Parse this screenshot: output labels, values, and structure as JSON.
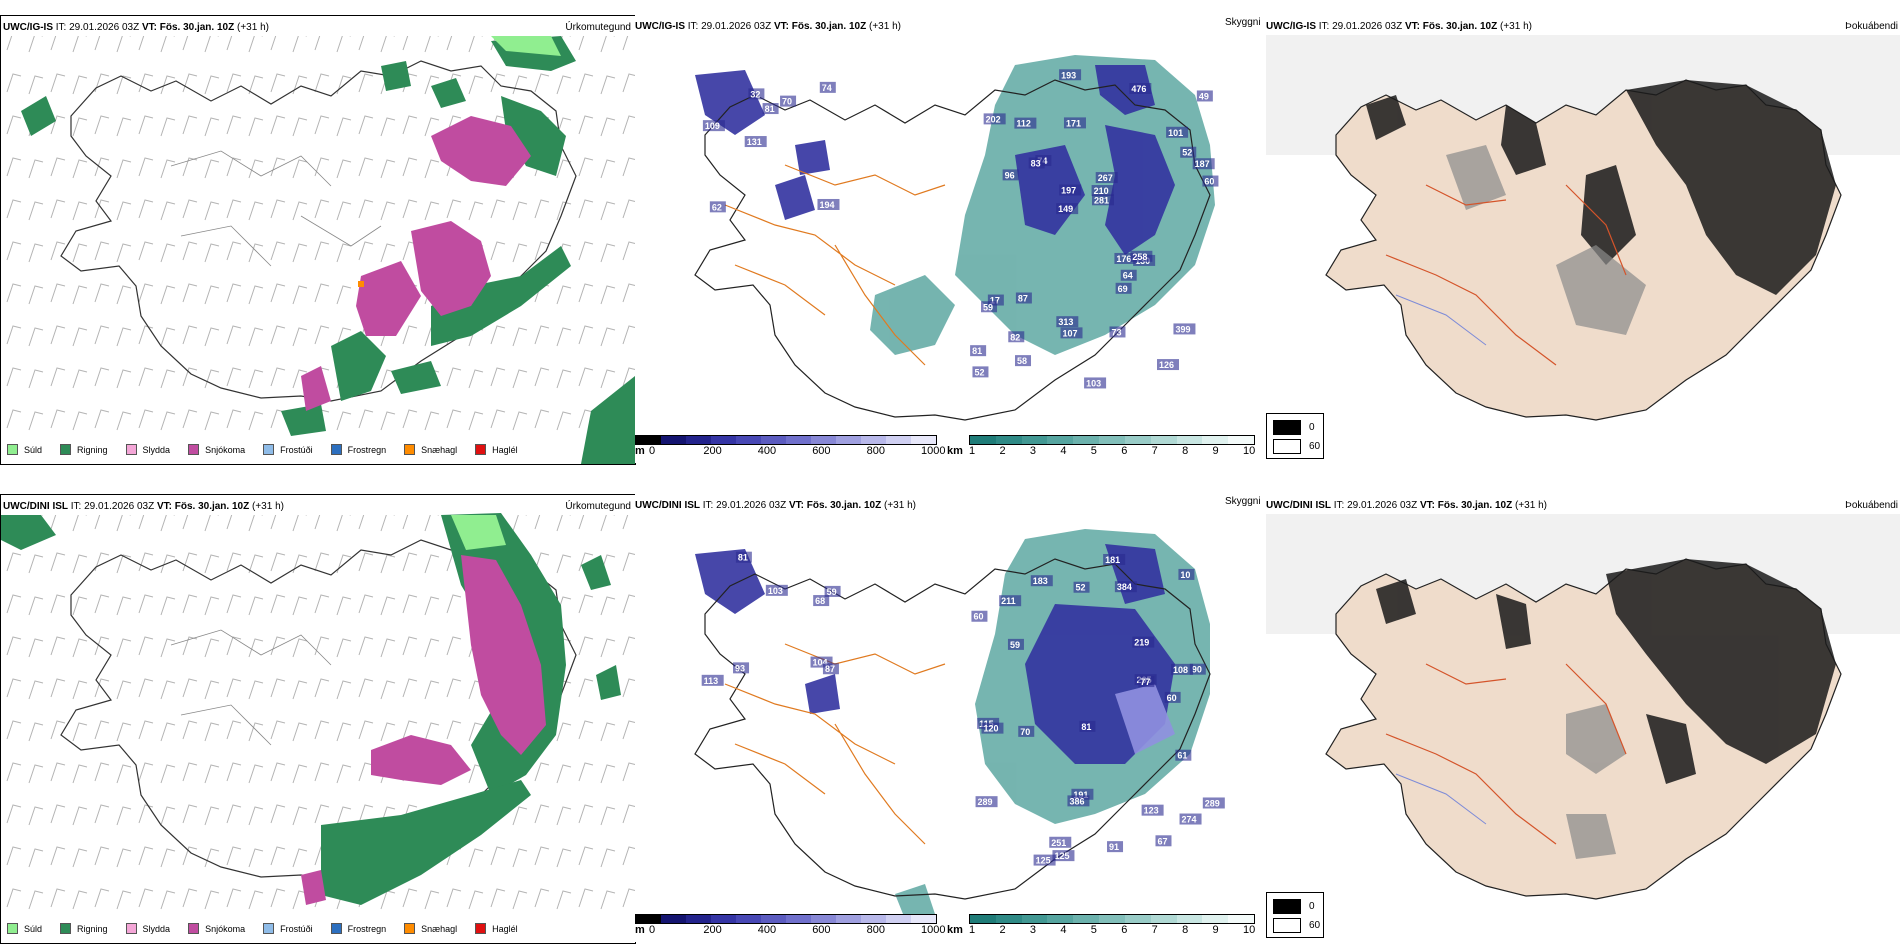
{
  "rows": [
    {
      "model": "UWC/IG-IS",
      "header_rest": " IT: 29.01.2026 03Z ",
      "vt_label": "VT:",
      "vt_value": "Fös. 30.jan. 10Z",
      "lead": " (+31 h)",
      "labels_cloud": [
        "194",
        "109",
        "74",
        "131",
        "70",
        "62",
        "32",
        "81",
        "17",
        "74",
        "81",
        "82",
        "171",
        "267",
        "130",
        "202",
        "193",
        "60",
        "176",
        "52",
        "149",
        "313",
        "197",
        "112",
        "476",
        "87",
        "126",
        "399",
        "258",
        "103",
        "83",
        "96",
        "69",
        "58",
        "187",
        "210",
        "52",
        "107",
        "281",
        "59",
        "101",
        "49",
        "64",
        "73"
      ]
    },
    {
      "model": "UWC/DINI ISL",
      "header_rest": " IT: 29.01.2026 03Z ",
      "vt_label": "VT:",
      "vt_value": "Fös. 30.jan. 10Z",
      "lead": " (+31 h)",
      "labels_cloud": [
        "104",
        "59",
        "87",
        "103",
        "113",
        "81",
        "68",
        "93",
        "10",
        "59",
        "90",
        "60",
        "60",
        "125",
        "289",
        "211",
        "274",
        "183",
        "191",
        "108",
        "115",
        "120",
        "91",
        "205",
        "251",
        "386",
        "181",
        "384",
        "219",
        "289",
        "70",
        "123",
        "125",
        "81",
        "61",
        "67",
        "77",
        "52"
      ]
    }
  ],
  "panel_titles": {
    "precip_type": "Úrkomutegund",
    "cloud_base": "Skyggni",
    "fog": "Þokuábendi"
  },
  "precip_legend": [
    {
      "label": "Súld",
      "color": "#90ee90"
    },
    {
      "label": "Rigning",
      "color": "#2e8b57"
    },
    {
      "label": "Slydda",
      "color": "#f4a6d7"
    },
    {
      "label": "Snjókoma",
      "color": "#c04ca0"
    },
    {
      "label": "Frostúði",
      "color": "#8fbce8"
    },
    {
      "label": "Frostregn",
      "color": "#2c6fbf"
    },
    {
      "label": "Snæhagl",
      "color": "#ff8c00"
    },
    {
      "label": "Haglél",
      "color": "#e01010"
    }
  ],
  "cloud_base_bar": {
    "unit": "m",
    "ticks": [
      "0",
      "200",
      "400",
      "600",
      "800",
      "1000"
    ],
    "colors": [
      "#000000",
      "#141470",
      "#23238c",
      "#3535a5",
      "#4848b5",
      "#5c5cc0",
      "#7070cc",
      "#8888d6",
      "#a0a0e0",
      "#b8b8ea",
      "#d0d0f2",
      "#e8e8fa"
    ]
  },
  "visibility_bar": {
    "unit": "km",
    "ticks": [
      "1",
      "2",
      "3",
      "4",
      "5",
      "6",
      "7",
      "8",
      "9",
      "10"
    ],
    "colors": [
      "#1f7c78",
      "#2f8a86",
      "#429893",
      "#56a5a0",
      "#6cb2ad",
      "#82bfba",
      "#99ccc7",
      "#b0d9d4",
      "#c8e6e2",
      "#e0f2ef",
      "#f4fbfa"
    ]
  },
  "fog_legend": [
    {
      "value": "0",
      "color": "#000000"
    },
    {
      "value": "60",
      "color": "#ffffff"
    }
  ]
}
